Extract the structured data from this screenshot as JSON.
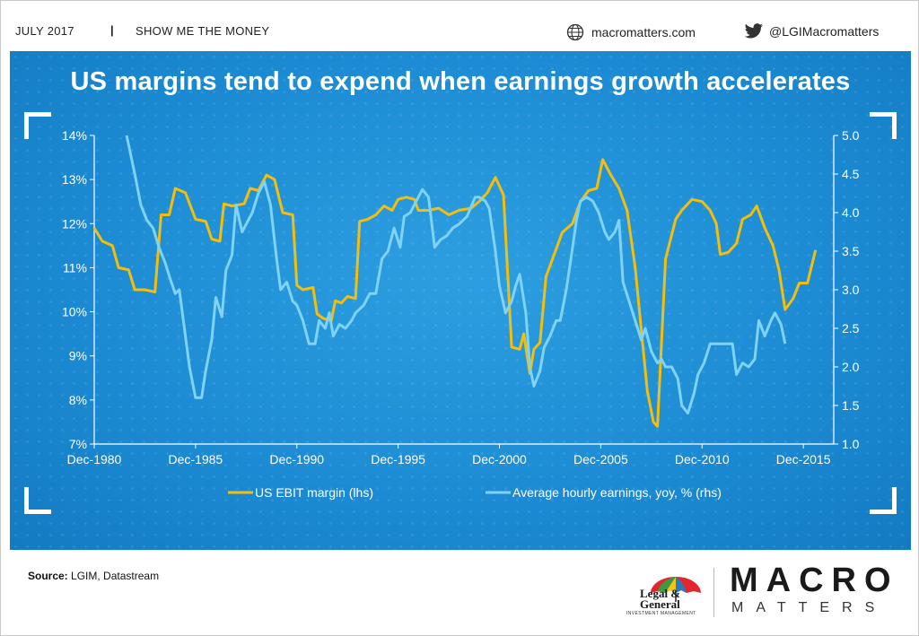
{
  "header": {
    "date": "JULY 2017",
    "separator": "|",
    "series_name": "SHOW ME THE MONEY",
    "website": "macromatters.com",
    "twitter_handle": "@LGIMacromatters"
  },
  "headline": "US margins tend to expend when earnings growth accelerates",
  "chart_data": {
    "type": "line",
    "title": "US margins tend to expend when earnings growth accelerates",
    "x_range": [
      1980.9,
      2017.4
    ],
    "x_ticks": [
      {
        "value": 1980.9,
        "label": "Dec-1980"
      },
      {
        "value": 1985.9,
        "label": "Dec-1985"
      },
      {
        "value": 1990.9,
        "label": "Dec-1990"
      },
      {
        "value": 1995.9,
        "label": "Dec-1995"
      },
      {
        "value": 2000.9,
        "label": "Dec-2000"
      },
      {
        "value": 2005.9,
        "label": "Dec-2005"
      },
      {
        "value": 2010.9,
        "label": "Dec-2010"
      },
      {
        "value": 2015.9,
        "label": "Dec-2015"
      }
    ],
    "y_left": {
      "range": [
        7,
        14
      ],
      "ticks": [
        7,
        8,
        9,
        10,
        11,
        12,
        13,
        14
      ],
      "labels": [
        "7%",
        "8%",
        "9%",
        "10%",
        "11%",
        "12%",
        "13%",
        "14%"
      ]
    },
    "y_right": {
      "range": [
        1.0,
        5.0
      ],
      "ticks": [
        1.0,
        1.5,
        2.0,
        2.5,
        3.0,
        3.5,
        4.0,
        4.5,
        5.0
      ],
      "labels": [
        "1.0",
        "1.5",
        "2.0",
        "2.5",
        "3.0",
        "3.5",
        "4.0",
        "4.5",
        "5.0"
      ]
    },
    "series": [
      {
        "name": "US EBIT margin (lhs)",
        "axis": "left",
        "color": "#f5be0b",
        "points": [
          [
            1980.9,
            11.9
          ],
          [
            1981.3,
            11.6
          ],
          [
            1981.8,
            11.5
          ],
          [
            1982.1,
            11.0
          ],
          [
            1982.6,
            10.95
          ],
          [
            1982.9,
            10.5
          ],
          [
            1983.4,
            10.5
          ],
          [
            1983.9,
            10.45
          ],
          [
            1984.2,
            12.2
          ],
          [
            1984.6,
            12.2
          ],
          [
            1984.9,
            12.8
          ],
          [
            1985.4,
            12.7
          ],
          [
            1985.9,
            12.1
          ],
          [
            1986.4,
            12.05
          ],
          [
            1986.7,
            11.65
          ],
          [
            1987.1,
            11.6
          ],
          [
            1987.3,
            12.45
          ],
          [
            1987.7,
            12.4
          ],
          [
            1988.3,
            12.45
          ],
          [
            1988.6,
            12.8
          ],
          [
            1989.0,
            12.75
          ],
          [
            1989.4,
            13.1
          ],
          [
            1989.8,
            13.0
          ],
          [
            1990.2,
            12.25
          ],
          [
            1990.7,
            12.2
          ],
          [
            1990.9,
            10.6
          ],
          [
            1991.2,
            10.5
          ],
          [
            1991.7,
            10.55
          ],
          [
            1991.9,
            9.95
          ],
          [
            1992.2,
            9.85
          ],
          [
            1992.6,
            9.8
          ],
          [
            1992.8,
            10.25
          ],
          [
            1993.1,
            10.2
          ],
          [
            1993.4,
            10.35
          ],
          [
            1993.8,
            10.3
          ],
          [
            1994.0,
            12.05
          ],
          [
            1994.4,
            12.1
          ],
          [
            1994.8,
            12.2
          ],
          [
            1995.2,
            12.4
          ],
          [
            1995.6,
            12.3
          ],
          [
            1995.9,
            12.55
          ],
          [
            1996.3,
            12.6
          ],
          [
            1996.7,
            12.55
          ],
          [
            1996.9,
            12.3
          ],
          [
            1997.4,
            12.3
          ],
          [
            1997.9,
            12.35
          ],
          [
            1998.4,
            12.2
          ],
          [
            1998.9,
            12.3
          ],
          [
            1999.5,
            12.35
          ],
          [
            1999.9,
            12.5
          ],
          [
            2000.3,
            12.7
          ],
          [
            2000.7,
            13.05
          ],
          [
            2001.1,
            12.65
          ],
          [
            2001.5,
            9.2
          ],
          [
            2001.9,
            9.15
          ],
          [
            2002.1,
            9.5
          ],
          [
            2002.4,
            8.6
          ],
          [
            2002.6,
            9.15
          ],
          [
            2002.9,
            9.3
          ],
          [
            2003.2,
            10.8
          ],
          [
            2003.6,
            11.3
          ],
          [
            2004.0,
            11.8
          ],
          [
            2004.5,
            12.0
          ],
          [
            2004.9,
            12.5
          ],
          [
            2005.3,
            12.75
          ],
          [
            2005.7,
            12.8
          ],
          [
            2006.0,
            13.45
          ],
          [
            2006.4,
            13.1
          ],
          [
            2006.8,
            12.8
          ],
          [
            2007.2,
            12.3
          ],
          [
            2007.6,
            11.0
          ],
          [
            2007.9,
            9.6
          ],
          [
            2008.2,
            8.2
          ],
          [
            2008.5,
            7.5
          ],
          [
            2008.7,
            7.4
          ],
          [
            2009.1,
            11.2
          ],
          [
            2009.6,
            12.1
          ],
          [
            2009.9,
            12.3
          ],
          [
            2010.4,
            12.55
          ],
          [
            2010.9,
            12.5
          ],
          [
            2011.3,
            12.3
          ],
          [
            2011.6,
            12.0
          ],
          [
            2011.8,
            11.3
          ],
          [
            2012.2,
            11.35
          ],
          [
            2012.6,
            11.55
          ],
          [
            2012.9,
            12.1
          ],
          [
            2013.3,
            12.2
          ],
          [
            2013.6,
            12.4
          ],
          [
            2014.0,
            11.9
          ],
          [
            2014.4,
            11.5
          ],
          [
            2014.7,
            10.95
          ],
          [
            2015.0,
            10.05
          ],
          [
            2015.4,
            10.3
          ],
          [
            2015.7,
            10.65
          ],
          [
            2016.1,
            10.65
          ],
          [
            2016.5,
            11.4
          ]
        ]
      },
      {
        "name": "Average hourly earnings, yoy, % (rhs)",
        "axis": "right",
        "color": "#7fd3f4",
        "points": [
          [
            1982.5,
            5.0
          ],
          [
            1982.9,
            4.5
          ],
          [
            1983.2,
            4.1
          ],
          [
            1983.5,
            3.9
          ],
          [
            1983.8,
            3.8
          ],
          [
            1984.1,
            3.55
          ],
          [
            1984.4,
            3.35
          ],
          [
            1984.7,
            3.1
          ],
          [
            1984.9,
            2.95
          ],
          [
            1985.1,
            3.0
          ],
          [
            1985.4,
            2.4
          ],
          [
            1985.6,
            2.0
          ],
          [
            1985.9,
            1.6
          ],
          [
            1986.2,
            1.6
          ],
          [
            1986.4,
            1.95
          ],
          [
            1986.7,
            2.35
          ],
          [
            1986.9,
            2.9
          ],
          [
            1987.2,
            2.65
          ],
          [
            1987.4,
            3.25
          ],
          [
            1987.7,
            3.45
          ],
          [
            1987.9,
            4.1
          ],
          [
            1988.2,
            3.75
          ],
          [
            1988.4,
            3.85
          ],
          [
            1988.7,
            4.0
          ],
          [
            1989.0,
            4.25
          ],
          [
            1989.3,
            4.4
          ],
          [
            1989.6,
            4.1
          ],
          [
            1989.9,
            3.4
          ],
          [
            1990.1,
            3.0
          ],
          [
            1990.4,
            3.1
          ],
          [
            1990.7,
            2.85
          ],
          [
            1990.9,
            2.8
          ],
          [
            1991.2,
            2.6
          ],
          [
            1991.5,
            2.3
          ],
          [
            1991.8,
            2.3
          ],
          [
            1992.0,
            2.6
          ],
          [
            1992.3,
            2.5
          ],
          [
            1992.5,
            2.7
          ],
          [
            1992.7,
            2.4
          ],
          [
            1993.0,
            2.55
          ],
          [
            1993.3,
            2.5
          ],
          [
            1993.6,
            2.6
          ],
          [
            1993.8,
            2.7
          ],
          [
            1994.2,
            2.8
          ],
          [
            1994.5,
            2.95
          ],
          [
            1994.8,
            2.95
          ],
          [
            1995.1,
            3.4
          ],
          [
            1995.4,
            3.5
          ],
          [
            1995.7,
            3.8
          ],
          [
            1996.0,
            3.55
          ],
          [
            1996.2,
            3.95
          ],
          [
            1996.5,
            4.0
          ],
          [
            1996.8,
            4.15
          ],
          [
            1997.1,
            4.3
          ],
          [
            1997.4,
            4.2
          ],
          [
            1997.7,
            3.55
          ],
          [
            1998.0,
            3.65
          ],
          [
            1998.3,
            3.7
          ],
          [
            1998.6,
            3.8
          ],
          [
            1998.9,
            3.85
          ],
          [
            1999.3,
            3.95
          ],
          [
            1999.7,
            4.2
          ],
          [
            1999.9,
            4.2
          ],
          [
            2000.2,
            4.15
          ],
          [
            2000.4,
            4.05
          ],
          [
            2000.7,
            3.5
          ],
          [
            2000.9,
            3.05
          ],
          [
            2001.2,
            2.7
          ],
          [
            2001.5,
            2.85
          ],
          [
            2001.7,
            3.05
          ],
          [
            2001.9,
            3.2
          ],
          [
            2002.2,
            2.7
          ],
          [
            2002.4,
            2.0
          ],
          [
            2002.6,
            1.75
          ],
          [
            2002.9,
            1.95
          ],
          [
            2003.1,
            2.25
          ],
          [
            2003.4,
            2.4
          ],
          [
            2003.7,
            2.6
          ],
          [
            2003.9,
            2.6
          ],
          [
            2004.2,
            3.0
          ],
          [
            2004.4,
            3.35
          ],
          [
            2004.7,
            3.9
          ],
          [
            2004.9,
            4.15
          ],
          [
            2005.2,
            4.2
          ],
          [
            2005.5,
            4.15
          ],
          [
            2005.8,
            4.0
          ],
          [
            2006.1,
            3.75
          ],
          [
            2006.3,
            3.65
          ],
          [
            2006.6,
            3.75
          ],
          [
            2006.8,
            3.9
          ],
          [
            2007.0,
            3.1
          ],
          [
            2007.3,
            2.85
          ],
          [
            2007.6,
            2.6
          ],
          [
            2007.9,
            2.35
          ],
          [
            2008.1,
            2.5
          ],
          [
            2008.4,
            2.2
          ],
          [
            2008.7,
            2.05
          ],
          [
            2008.9,
            2.1
          ],
          [
            2009.1,
            2.0
          ],
          [
            2009.4,
            2.0
          ],
          [
            2009.7,
            1.85
          ],
          [
            2009.9,
            1.5
          ],
          [
            2010.2,
            1.4
          ],
          [
            2010.5,
            1.65
          ],
          [
            2010.7,
            1.9
          ],
          [
            2011.0,
            2.05
          ],
          [
            2011.3,
            2.3
          ],
          [
            2011.6,
            2.3
          ],
          [
            2011.8,
            2.3
          ],
          [
            2012.1,
            2.3
          ],
          [
            2012.4,
            2.3
          ],
          [
            2012.6,
            1.9
          ],
          [
            2012.9,
            2.05
          ],
          [
            2013.2,
            2.0
          ],
          [
            2013.5,
            2.1
          ],
          [
            2013.7,
            2.6
          ],
          [
            2014.0,
            2.4
          ],
          [
            2014.3,
            2.6
          ],
          [
            2014.5,
            2.7
          ],
          [
            2014.8,
            2.55
          ],
          [
            2015.0,
            2.3
          ]
        ]
      }
    ],
    "legend": [
      {
        "label": "US EBIT margin (lhs)",
        "color": "#f5be0b"
      },
      {
        "label": "Average hourly earnings, yoy, % (rhs)",
        "color": "#7fd3f4"
      }
    ],
    "legend_position": "bottom-center",
    "grid": false
  },
  "footer": {
    "source_label": "Source:",
    "source_text": "LGIM, Datastream",
    "lg_name_line1": "Legal &",
    "lg_name_line2": "General",
    "lg_subtitle": "INVESTMENT MANAGEMENT",
    "brand_big": "MACRO",
    "brand_small": "MATTERS"
  }
}
